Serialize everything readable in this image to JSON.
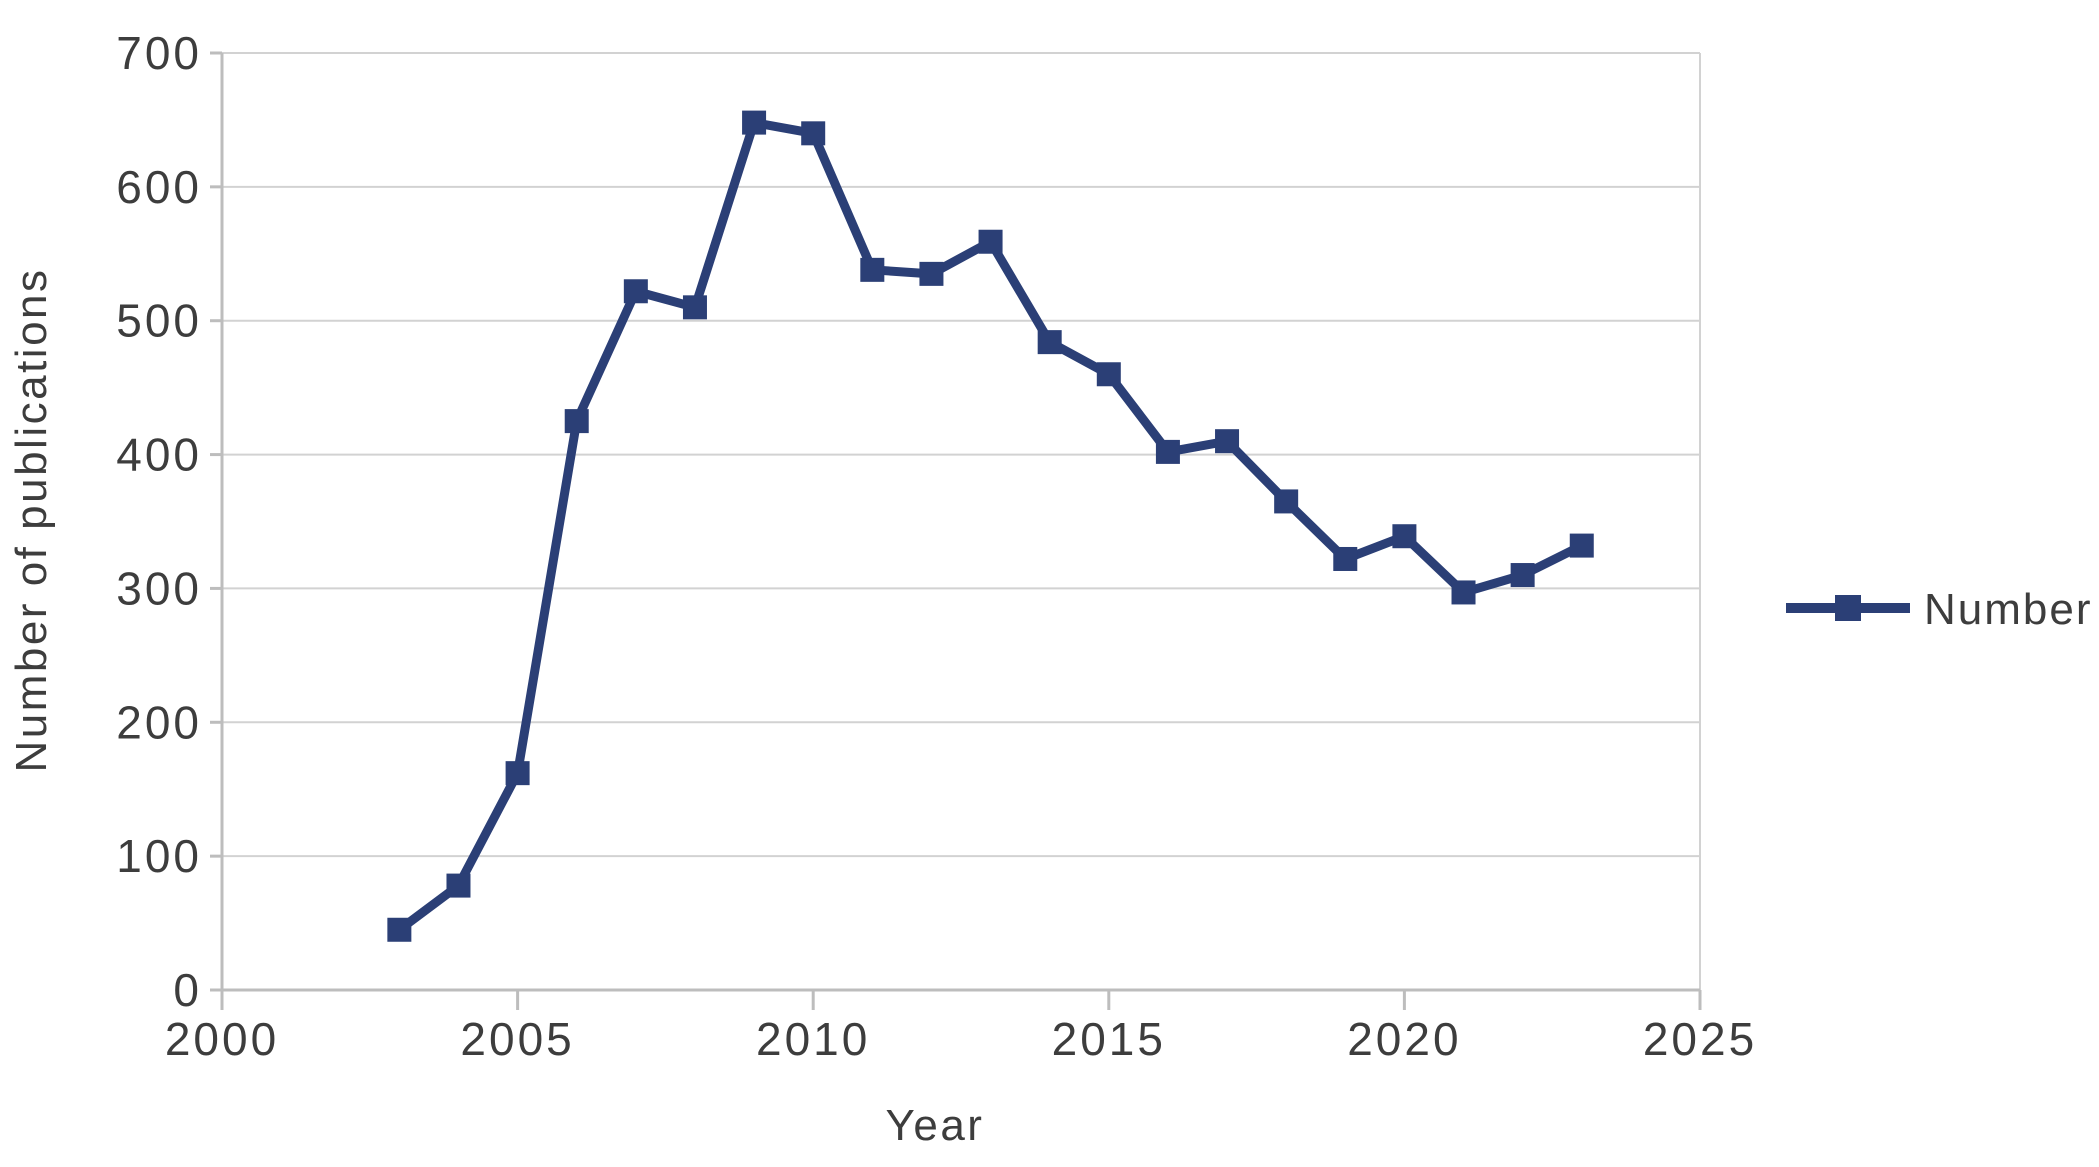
{
  "chart": {
    "background_color": "#ffffff",
    "series_color": "#2B3F76",
    "grid_color": "#d2d2d2",
    "axis_color": "#bdbdbd",
    "text_color": "#3d3d3d"
  },
  "chart_data": {
    "type": "line",
    "title": "",
    "xlabel": "Year",
    "ylabel": "Number of publications",
    "legend": [
      "Number"
    ],
    "legend_position": "right",
    "marker": "square",
    "grid": "horizontal",
    "xlim": [
      2000,
      2025
    ],
    "ylim": [
      0,
      700
    ],
    "xticks": [
      2000,
      2005,
      2010,
      2015,
      2020,
      2025
    ],
    "yticks": [
      0,
      100,
      200,
      300,
      400,
      500,
      600,
      700
    ],
    "x": [
      2003,
      2004,
      2005,
      2006,
      2007,
      2008,
      2009,
      2010,
      2011,
      2012,
      2013,
      2014,
      2015,
      2016,
      2017,
      2018,
      2019,
      2020,
      2021,
      2022,
      2023
    ],
    "series": [
      {
        "name": "Number",
        "values": [
          45,
          78,
          162,
          425,
          522,
          510,
          648,
          640,
          538,
          535,
          559,
          484,
          460,
          402,
          410,
          365,
          322,
          339,
          297,
          310,
          332
        ]
      }
    ]
  }
}
